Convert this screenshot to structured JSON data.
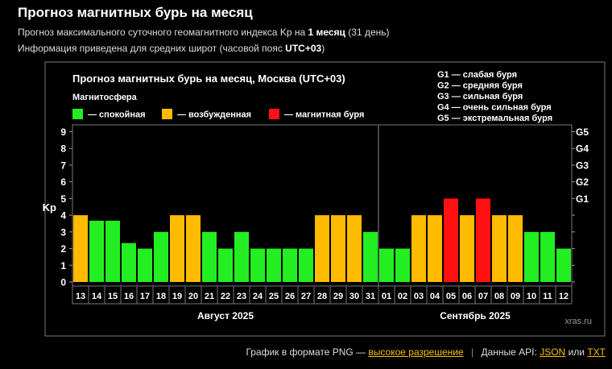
{
  "header": {
    "title": "Прогноз магнитных бурь на месяц",
    "line1_prefix": "Прогноз максимального суточного геомагнитного индекса Kp на",
    "line1_bold": "1 месяц",
    "line1_suffix": "(31 день)",
    "line2_prefix": "Информация приведена для средних широт (часовой пояс",
    "line2_bold": "UTC+03",
    "line2_suffix": ")"
  },
  "colors": {
    "quiet": "#22ee22",
    "active": "#ffbb00",
    "storm": "#ff1111",
    "background": "#000000"
  },
  "chart_data": {
    "type": "bar",
    "title": "Прогноз магнитных бурь на месяц, Москва (UTC+03)",
    "legend_heading": "Магнитосфера",
    "legend": [
      {
        "key": "quiet",
        "label": "— спокойная"
      },
      {
        "key": "active",
        "label": "— возбужденная"
      },
      {
        "key": "storm",
        "label": "— магнитная буря"
      }
    ],
    "storm_scale": [
      "G1 — слабая буря",
      "G2 — средняя буря",
      "G3 — сильная буря",
      "G4 — очень сильная буря",
      "G5 — экстремальная буря"
    ],
    "ylabel": "Kp",
    "ylim": [
      0,
      9
    ],
    "yticks": [
      "0",
      "1",
      "2",
      "3",
      "4",
      "5",
      "6",
      "7",
      "8",
      "9"
    ],
    "right_axis_labels": [
      "G1",
      "G2",
      "G3",
      "G4",
      "G5"
    ],
    "categories": [
      "13",
      "14",
      "15",
      "16",
      "17",
      "18",
      "19",
      "20",
      "21",
      "22",
      "23",
      "24",
      "25",
      "26",
      "27",
      "28",
      "29",
      "30",
      "31",
      "01",
      "02",
      "03",
      "04",
      "05",
      "06",
      "07",
      "08",
      "09",
      "10",
      "11",
      "12"
    ],
    "values": [
      4,
      3.67,
      3.67,
      2.33,
      2,
      3,
      4,
      4,
      3,
      2,
      3,
      2,
      2,
      2,
      2,
      4,
      4,
      4,
      3,
      2,
      2,
      4,
      4,
      5,
      4,
      5,
      4,
      4,
      3,
      3,
      2
    ],
    "months": [
      {
        "label": "Август 2025",
        "from": 0,
        "to": 18
      },
      {
        "label": "Сентябрь 2025",
        "from": 19,
        "to": 30
      }
    ],
    "watermark": "xras.ru"
  },
  "footer": {
    "png_text": "График в формате PNG —",
    "png_link": "высокое разрешение",
    "api_text": "Данные API:",
    "json_link": "JSON",
    "or_text": "или",
    "txt_link": "TXT"
  }
}
